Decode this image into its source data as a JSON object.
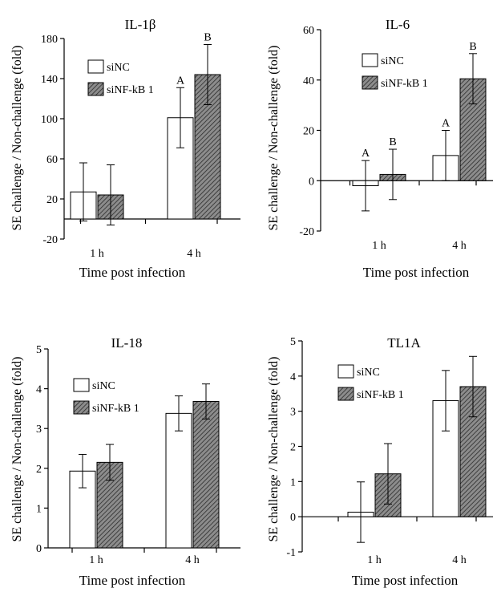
{
  "chart_data": [
    {
      "type": "bar",
      "title": "IL-1β",
      "ylabel": "SE challenge / Non-challenge (fold)",
      "xlabel": "Time post infection",
      "categories": [
        "1 h",
        "4 h"
      ],
      "ylim": [
        -20,
        180
      ],
      "yticks": [
        -20,
        20,
        60,
        100,
        140,
        180
      ],
      "legend": "top-left",
      "series": [
        {
          "name": "siNC",
          "style": "open",
          "values": [
            27,
            101
          ],
          "errors": [
            29,
            30
          ],
          "labels": [
            "",
            "A"
          ]
        },
        {
          "name": "siNF-kB 1",
          "style": "hatched",
          "values": [
            24,
            144
          ],
          "errors": [
            30,
            30
          ],
          "labels": [
            "",
            "B"
          ]
        }
      ]
    },
    {
      "type": "bar",
      "title": "IL-6",
      "ylabel": "SE challenge / Non-challenge (fold)",
      "xlabel": "Time post infection",
      "categories": [
        "1 h",
        "4 h"
      ],
      "ylim": [
        -20,
        60
      ],
      "yticks": [
        -20,
        0,
        20,
        40,
        60
      ],
      "legend": "top-left",
      "series": [
        {
          "name": "siNC",
          "style": "open",
          "values": [
            -2,
            10
          ],
          "errors": [
            10,
            10
          ],
          "labels": [
            "A",
            "A"
          ]
        },
        {
          "name": "siNF-kB 1",
          "style": "hatched",
          "values": [
            2.5,
            40.5
          ],
          "errors": [
            10,
            10
          ],
          "labels": [
            "B",
            "B"
          ]
        }
      ]
    },
    {
      "type": "bar",
      "title": "IL-18",
      "ylabel": "SE challenge / Non-challenge (fold)",
      "xlabel": "Time post infection",
      "categories": [
        "1 h",
        "4 h"
      ],
      "ylim": [
        0,
        5
      ],
      "yticks": [
        0,
        1,
        2,
        3,
        4,
        5
      ],
      "legend": "top-left",
      "series": [
        {
          "name": "siNC",
          "style": "open",
          "values": [
            1.93,
            3.38
          ],
          "errors": [
            0.42,
            0.44
          ],
          "labels": [
            "",
            ""
          ]
        },
        {
          "name": "siNF-kB 1",
          "style": "hatched",
          "values": [
            2.15,
            3.68
          ],
          "errors": [
            0.45,
            0.44
          ],
          "labels": [
            "",
            ""
          ]
        }
      ]
    },
    {
      "type": "bar",
      "title": "TL1A",
      "ylabel": "SE challenge / Non-challenge (fold)",
      "xlabel": "Time post infection",
      "categories": [
        "1 h",
        "4 h"
      ],
      "ylim": [
        -1,
        5
      ],
      "yticks": [
        -1,
        0,
        1,
        2,
        3,
        4,
        5
      ],
      "legend": "top-left",
      "series": [
        {
          "name": "siNC",
          "style": "open",
          "values": [
            0.13,
            3.3
          ],
          "errors": [
            0.86,
            0.86
          ],
          "labels": [
            "",
            ""
          ]
        },
        {
          "name": "siNF-kB 1",
          "style": "hatched",
          "values": [
            1.22,
            3.7
          ],
          "errors": [
            0.86,
            0.86
          ],
          "labels": [
            "",
            ""
          ]
        }
      ]
    }
  ]
}
